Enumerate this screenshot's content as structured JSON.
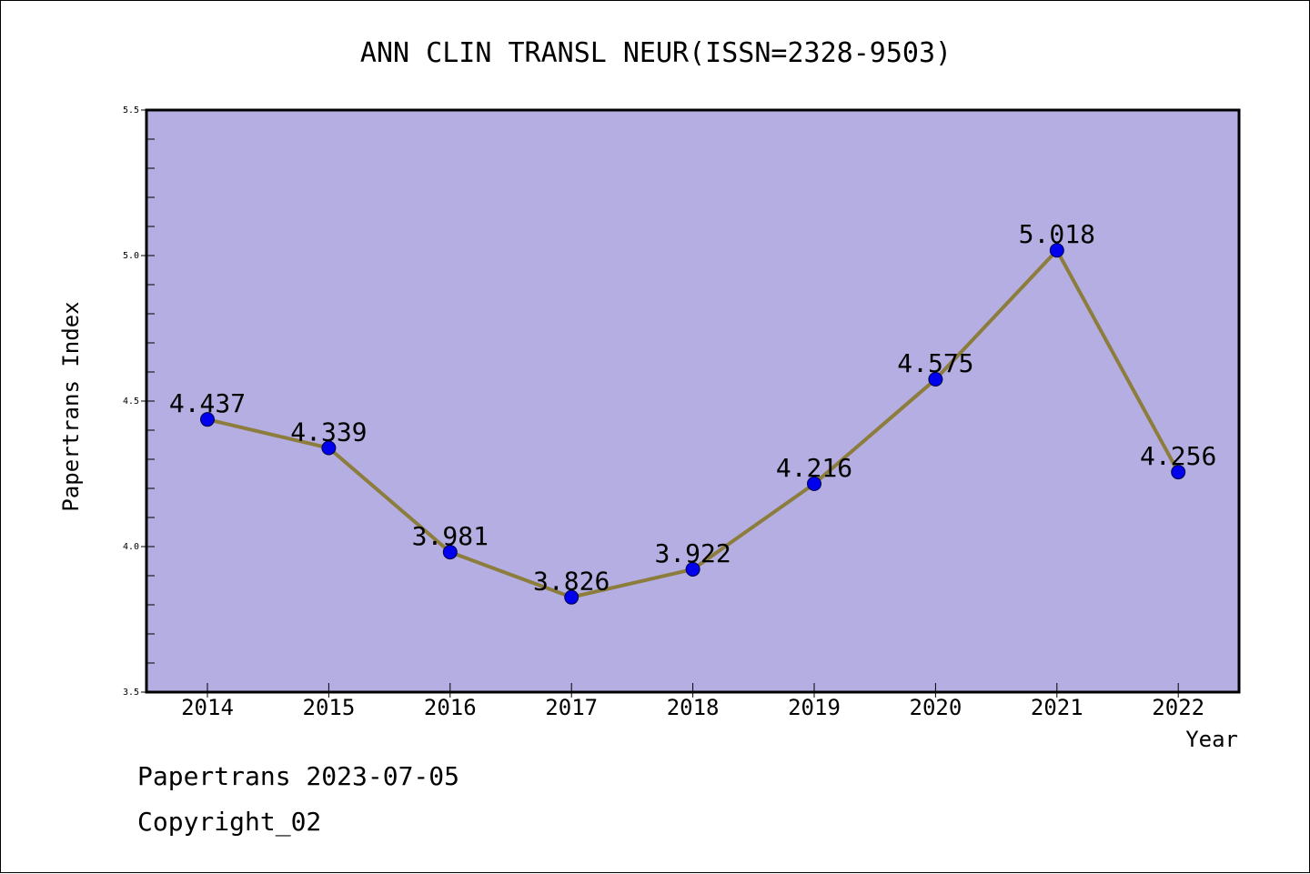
{
  "chart_data": {
    "type": "line",
    "title": "ANN CLIN TRANSL NEUR(ISSN=2328-9503)",
    "xlabel": "Year",
    "ylabel": "Papertrans Index",
    "categories": [
      "2014",
      "2015",
      "2016",
      "2017",
      "2018",
      "2019",
      "2020",
      "2021",
      "2022"
    ],
    "series": [
      {
        "values": [
          4.437,
          4.339,
          3.981,
          3.826,
          3.922,
          4.216,
          4.575,
          5.018,
          4.256
        ]
      }
    ],
    "data_labels": [
      "4.437",
      "4.339",
      "3.981",
      "3.826",
      "3.922",
      "4.216",
      "4.575",
      "5.018",
      "4.256"
    ],
    "ylim": [
      3.5,
      5.5
    ],
    "y_ticks": [
      "3.5",
      "4.0",
      "4.5",
      "5.0",
      "5.5"
    ],
    "grid": false,
    "colors": {
      "plot_background": "#b4aee2",
      "line": "#8c7d3c",
      "marker": "#0000ee"
    }
  },
  "footer": {
    "line1": "Papertrans 2023-07-05",
    "line2": "Copyright_02"
  }
}
